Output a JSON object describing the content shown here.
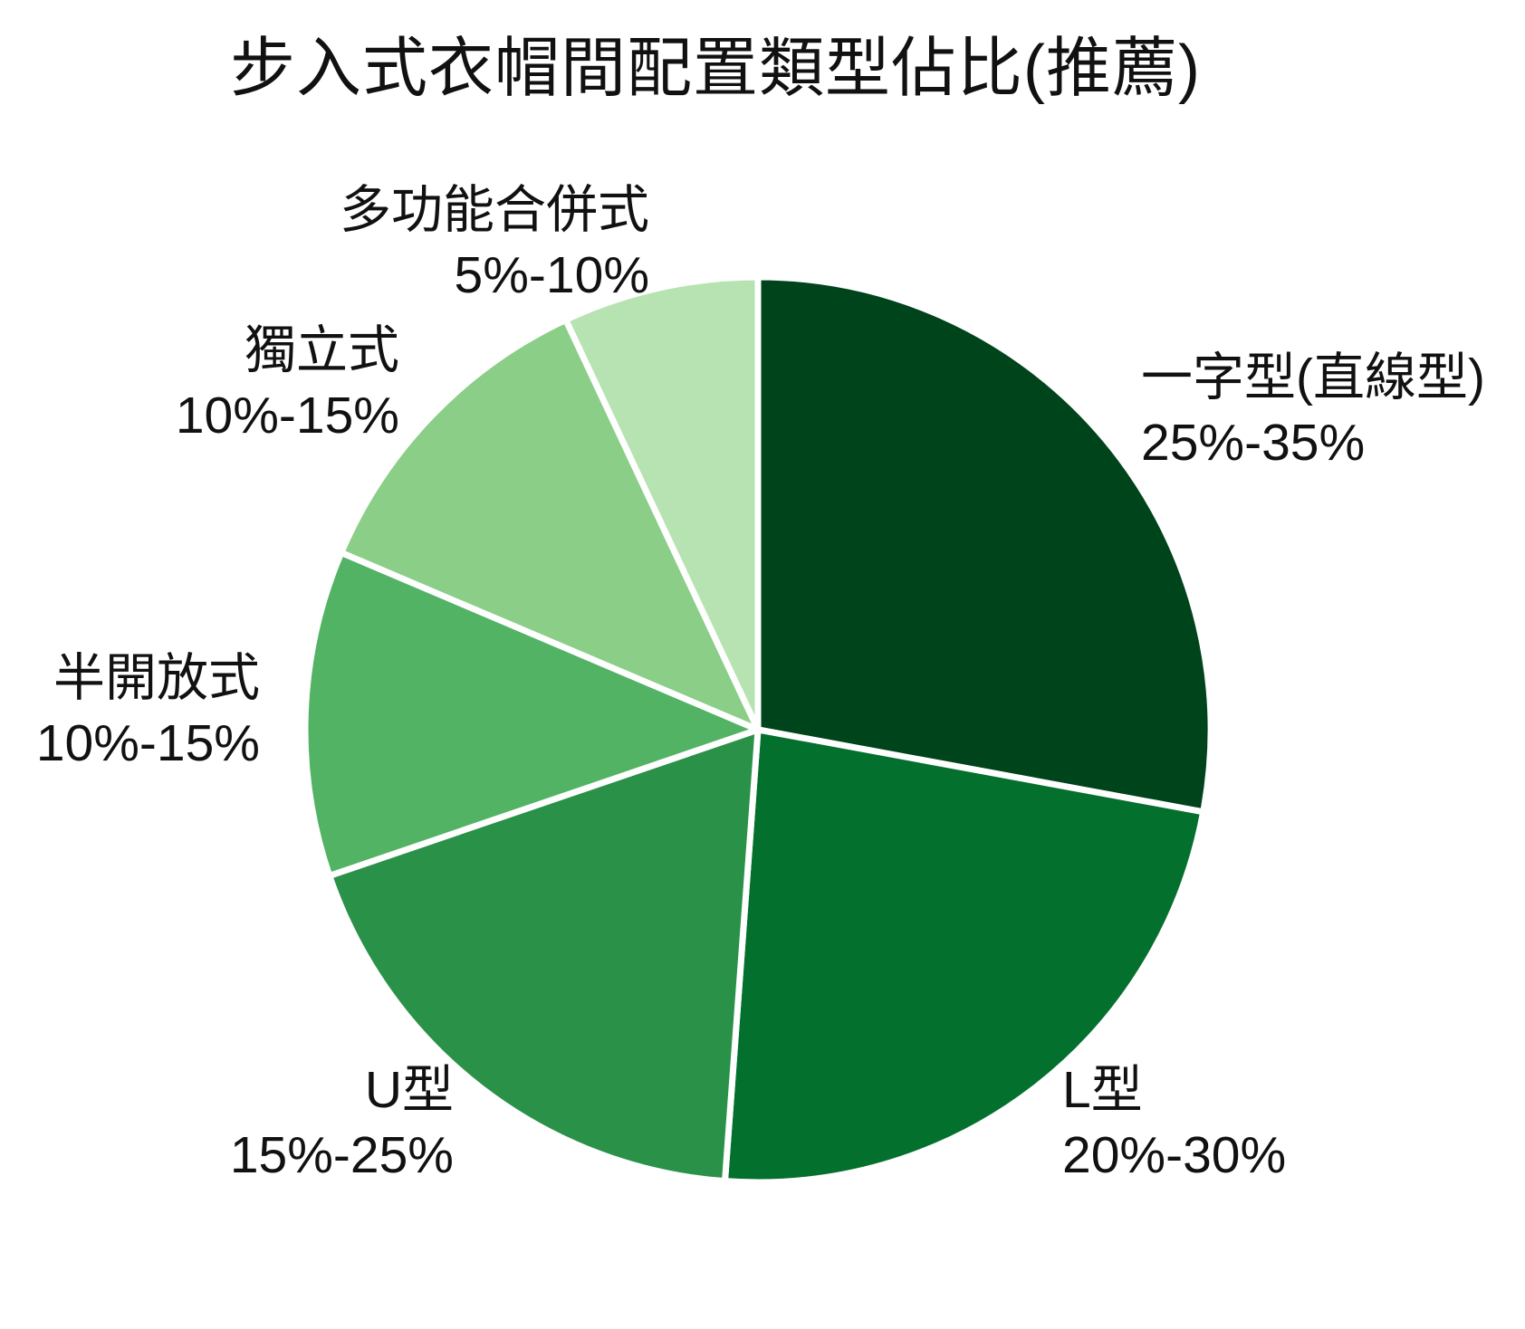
{
  "chart_data": {
    "type": "pie",
    "title": "步入式衣帽間配置類型佔比(推薦)",
    "start_at": "12-oclock",
    "direction": "clockwise",
    "labeldistance": 1.1,
    "legend_position": "none",
    "grid": false,
    "background_color": "#FFFFFF",
    "slice_border_color": "#FFFFFF",
    "slices": [
      {
        "label": "一字型(直線型)",
        "range": "25%-35%",
        "value_pct_mid": 30,
        "color": "#00441B"
      },
      {
        "label": "L型",
        "range": "20%-30%",
        "value_pct_mid": 25,
        "color": "#04702E"
      },
      {
        "label": "U型",
        "range": "15%-25%",
        "value_pct_mid": 20,
        "color": "#2A9149"
      },
      {
        "label": "半開放式",
        "range": "10%-15%",
        "value_pct_mid": 12.5,
        "color": "#52B365"
      },
      {
        "label": "獨立式",
        "range": "10%-15%",
        "value_pct_mid": 12.5,
        "color": "#8ACE87"
      },
      {
        "label": "多功能合併式",
        "range": "5%-10%",
        "value_pct_mid": 7.5,
        "color": "#B7E3B2"
      }
    ]
  }
}
